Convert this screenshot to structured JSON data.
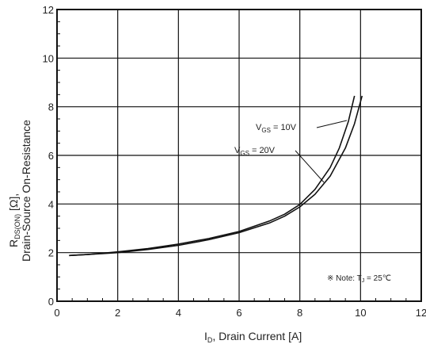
{
  "chart_data": {
    "type": "line",
    "xlabel": "I",
    "xlabel_sub": "D",
    "xlabel_rest": ", Drain Current [A]",
    "ylabel_line1_main": "R",
    "ylabel_line1_sub": "DS(ON)",
    "ylabel_line1_rest": " [Ω],",
    "ylabel_line2": "Drain-Source On-Resistance",
    "xlim": [
      0,
      12
    ],
    "ylim": [
      0,
      12
    ],
    "xticks": [
      "0",
      "2",
      "4",
      "6",
      "8",
      "10",
      "12"
    ],
    "yticks": [
      "0",
      "2",
      "4",
      "6",
      "8",
      "10",
      "12"
    ],
    "grid": true,
    "series": [
      {
        "name": "VGS = 10V",
        "name_main": "V",
        "name_sub": "GS",
        "name_rest": " = 10V",
        "x": [
          0.4,
          1,
          2,
          3,
          4,
          5,
          6,
          7,
          7.5,
          8,
          8.5,
          9,
          9.3,
          9.6,
          9.8
        ],
        "y": [
          1.88,
          1.92,
          2.03,
          2.17,
          2.35,
          2.58,
          2.87,
          3.3,
          3.58,
          3.98,
          4.6,
          5.5,
          6.3,
          7.4,
          8.45
        ]
      },
      {
        "name": "VGS = 20V",
        "name_main": "V",
        "name_sub": "GS",
        "name_rest": " = 20V",
        "x": [
          0.4,
          1,
          2,
          3,
          4,
          5,
          6,
          7,
          7.5,
          8,
          8.5,
          9,
          9.5,
          9.8,
          10.05
        ],
        "y": [
          1.88,
          1.92,
          2.0,
          2.13,
          2.3,
          2.53,
          2.82,
          3.22,
          3.5,
          3.88,
          4.4,
          5.15,
          6.3,
          7.3,
          8.45
        ]
      }
    ],
    "note": "※ Note: T",
    "note_sub": "J",
    "note_rest": " = 25℃"
  }
}
